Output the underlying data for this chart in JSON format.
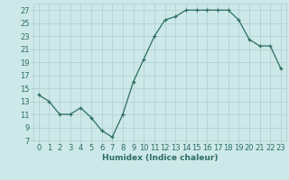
{
  "x": [
    0,
    1,
    2,
    3,
    4,
    5,
    6,
    7,
    8,
    9,
    10,
    11,
    12,
    13,
    14,
    15,
    16,
    17,
    18,
    19,
    20,
    21,
    22,
    23
  ],
  "y": [
    14,
    13,
    11,
    11,
    12,
    10.5,
    8.5,
    7.5,
    11,
    16,
    19.5,
    23,
    25.5,
    26,
    27,
    27,
    27,
    27,
    27,
    25.5,
    22.5,
    21.5,
    21.5,
    18
  ],
  "xlabel": "Humidex (Indice chaleur)",
  "xlim": [
    -0.5,
    23.5
  ],
  "ylim": [
    7,
    28
  ],
  "yticks": [
    7,
    9,
    11,
    13,
    15,
    17,
    19,
    21,
    23,
    25,
    27
  ],
  "xticks": [
    0,
    1,
    2,
    3,
    4,
    5,
    6,
    7,
    8,
    9,
    10,
    11,
    12,
    13,
    14,
    15,
    16,
    17,
    18,
    19,
    20,
    21,
    22,
    23
  ],
  "line_color": "#2d6e63",
  "marker": "+",
  "background_color": "#cce8e8",
  "grid_color": "#b0cccc",
  "label_fontsize": 6.5,
  "tick_fontsize": 6
}
